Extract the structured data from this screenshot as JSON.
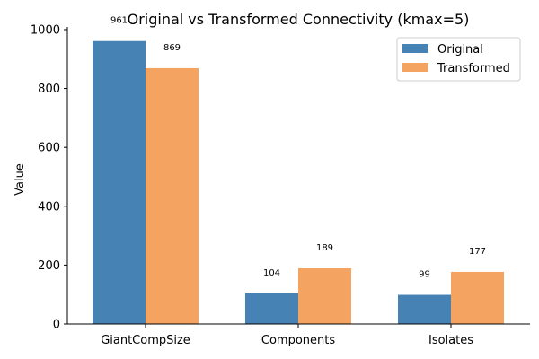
{
  "chart_data": {
    "type": "bar",
    "title": "Original vs Transformed Connectivity (kmax=5)",
    "xlabel": "",
    "ylabel": "Value",
    "categories": [
      "GiantCompSize",
      "Components",
      "Isolates"
    ],
    "series": [
      {
        "name": "Original",
        "values": [
          961,
          104,
          99
        ],
        "color": "#4682b4"
      },
      {
        "name": "Transformed",
        "values": [
          869,
          189,
          177
        ],
        "color": "#f4a460"
      }
    ],
    "ylim": [
      0,
      1009
    ],
    "yticks": [
      0,
      200,
      400,
      600,
      800,
      1000
    ],
    "grid": false,
    "legend_position": "top-right",
    "data_labels": true
  }
}
